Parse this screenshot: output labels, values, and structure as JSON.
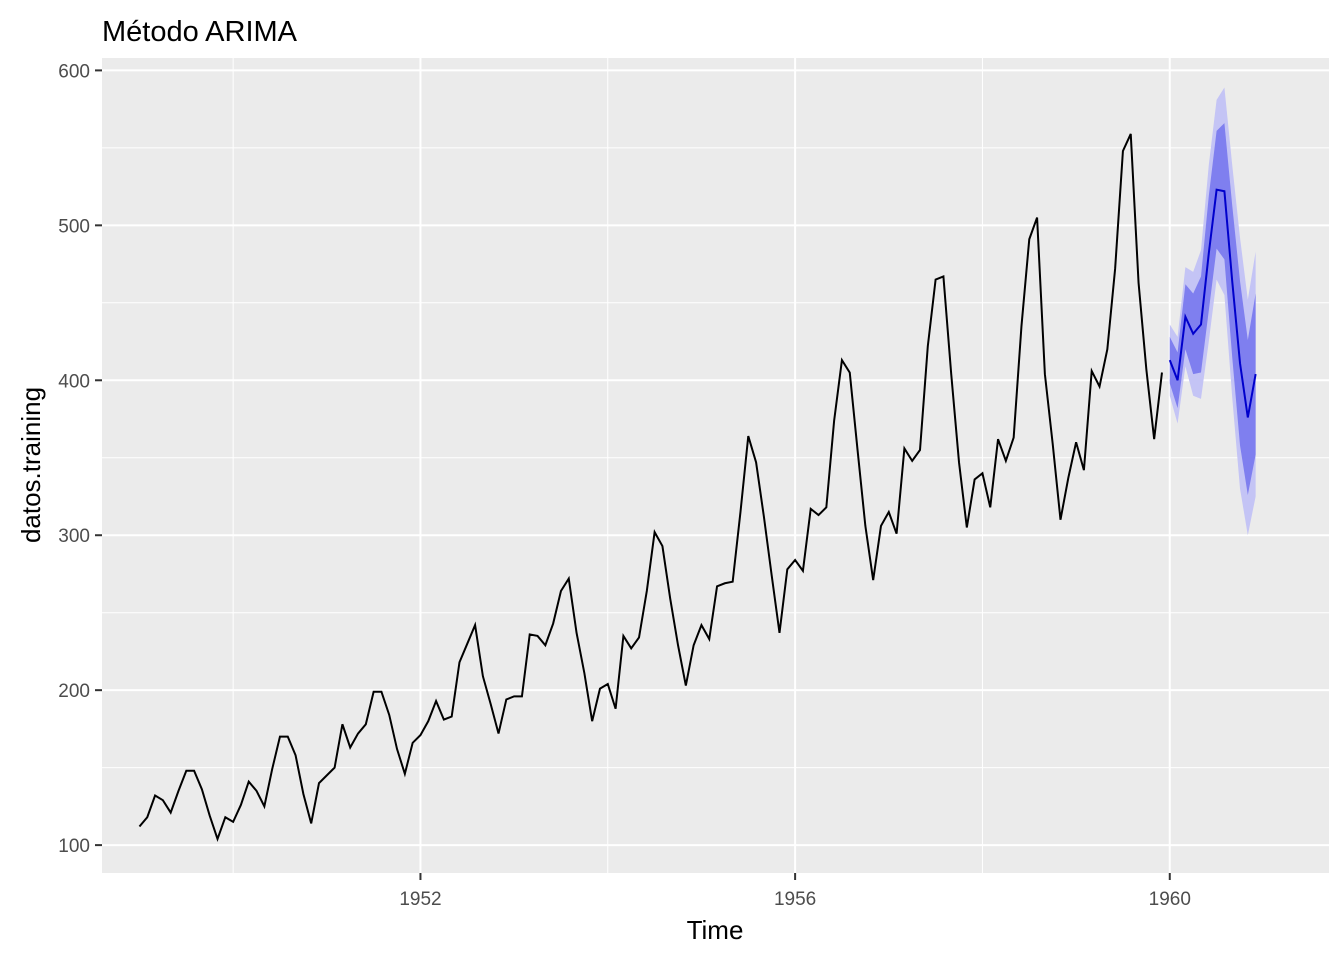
{
  "chart_data": {
    "type": "line",
    "title": "Método ARIMA",
    "xlabel": "Time",
    "ylabel": "datos.training",
    "xlim": [
      1948.6,
      1961.7
    ],
    "ylim": [
      82,
      608
    ],
    "x_ticks": [
      1952,
      1956,
      1960
    ],
    "x_minor_ticks": [
      1950,
      1954,
      1958
    ],
    "y_ticks": [
      100,
      200,
      300,
      400,
      500,
      600
    ],
    "y_minor_ticks": [
      150,
      250,
      350,
      450,
      550
    ],
    "grid": true,
    "legend": "none",
    "colors": {
      "panel": "#ebebeb",
      "grid": "#ffffff",
      "series": "#000000",
      "forecast": "#0000cc",
      "band80": "#7f7fef",
      "band95": "#c4c4f5"
    },
    "series": [
      {
        "x_start": 1949.0,
        "x_step": 0.083333,
        "values": [
          112,
          118,
          132,
          129,
          121,
          135,
          148,
          148,
          136,
          119,
          104,
          118,
          115,
          126,
          141,
          135,
          125,
          149,
          170,
          170,
          158,
          133,
          114,
          140,
          145,
          150,
          178,
          163,
          172,
          178,
          199,
          199,
          184,
          162,
          146,
          166,
          171,
          180,
          193,
          181,
          183,
          218,
          230,
          242,
          209,
          191,
          172,
          194,
          196,
          196,
          236,
          235,
          229,
          243,
          264,
          272,
          237,
          211,
          180,
          201,
          204,
          188,
          235,
          227,
          234,
          264,
          302,
          293,
          259,
          229,
          203,
          229,
          242,
          233,
          267,
          269,
          270,
          315,
          364,
          347,
          312,
          274,
          237,
          278,
          284,
          277,
          317,
          313,
          318,
          374,
          413,
          405,
          355,
          306,
          271,
          306,
          315,
          301,
          356,
          348,
          355,
          422,
          465,
          467,
          404,
          347,
          305,
          336,
          340,
          318,
          362,
          348,
          363,
          435,
          491,
          505,
          404,
          359,
          310,
          337,
          360,
          342,
          406,
          396,
          420,
          472,
          548,
          559,
          463,
          407,
          362,
          405
        ]
      },
      {
        "x_start": 1960.0,
        "x_step": 0.083333,
        "values": [
          413,
          400,
          441,
          430,
          436,
          482,
          523,
          522,
          464,
          411,
          376,
          404
        ],
        "lo80": [
          398,
          382,
          420,
          404,
          405,
          445,
          485,
          478,
          415,
          358,
          326,
          352
        ],
        "hi80": [
          428,
          418,
          462,
          456,
          467,
          519,
          561,
          566,
          513,
          464,
          426,
          456
        ],
        "lo95": [
          390,
          372,
          409,
          390,
          388,
          425,
          465,
          455,
          389,
          330,
          300,
          325
        ],
        "hi95": [
          436,
          428,
          473,
          470,
          484,
          539,
          581,
          589,
          539,
          492,
          452,
          483
        ]
      }
    ]
  }
}
